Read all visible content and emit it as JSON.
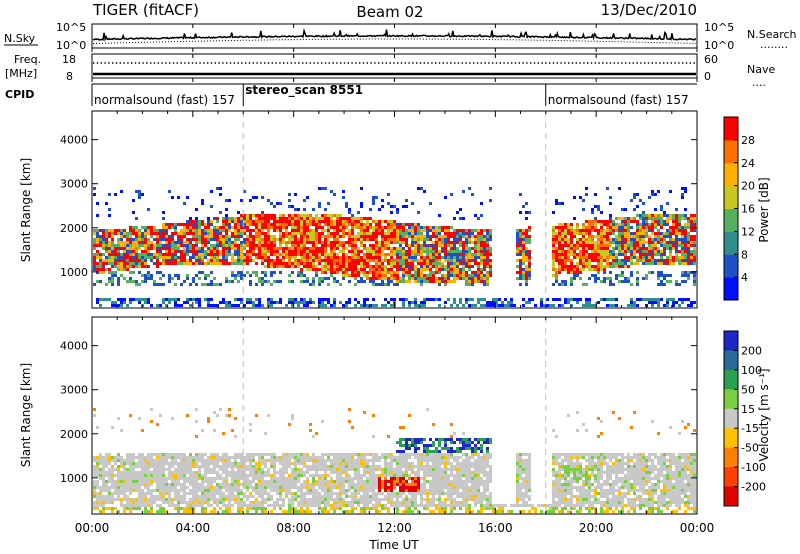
{
  "header": {
    "station": "TIGER (fitACF)",
    "beam": "Beam 02",
    "date": "13/Dec/2010"
  },
  "panels": {
    "nsky": {
      "left_label": "N.Sky",
      "left_top_tick": "10^5",
      "left_bottom_tick": "10^0",
      "right_top_tick": "10^5",
      "right_bottom_tick": "10^0",
      "right_label": "N.Search",
      "right_legend": "........"
    },
    "freq": {
      "left_label_line1": "Freq.",
      "left_label_line2": "[MHz]",
      "left_top_tick": "18",
      "left_bottom_tick": "8",
      "right_top_tick": "60",
      "right_bottom_tick": "0",
      "right_label": "Nave",
      "right_legend": "...."
    },
    "cpid": {
      "label": "CPID",
      "segments": [
        {
          "name": "normalsound (fast) 157",
          "start_hour": 0,
          "end_hour": 6
        },
        {
          "name": "stereo_scan 8551",
          "start_hour": 6,
          "end_hour": 18
        },
        {
          "name": "normalsound (fast) 157",
          "start_hour": 18,
          "end_hour": 24
        }
      ]
    }
  },
  "chart_data": [
    {
      "type": "heatmap",
      "name": "power",
      "ylabel": "Slant Range [km]",
      "yticks": [
        "1000",
        "2000",
        "3000",
        "4000"
      ],
      "ylim": [
        180,
        4650
      ],
      "colorbar": {
        "label": "Power [dB]",
        "ticks": [
          "4",
          "8",
          "12",
          "16",
          "20",
          "24",
          "28"
        ],
        "colors": [
          "#0010ff",
          "#1e50c8",
          "#2f8f8f",
          "#55b060",
          "#c8c820",
          "#ffb000",
          "#ff7000",
          "#ff0000"
        ]
      }
    },
    {
      "type": "heatmap",
      "name": "velocity",
      "ylabel": "Slant Range [km]",
      "yticks": [
        "1000",
        "2000",
        "3000",
        "4000"
      ],
      "ylim": [
        180,
        4650
      ],
      "colorbar": {
        "label": "Velocity [m s⁻¹]",
        "ticks": [
          "200",
          "100",
          "50",
          "15",
          "-15",
          "-50",
          "-100",
          "-200"
        ],
        "colors": [
          "#1e28c8",
          "#2a6a9a",
          "#2aa050",
          "#78d040",
          "#c8c8c8",
          "#ffc000",
          "#ff8000",
          "#ff4000",
          "#e00000"
        ]
      }
    }
  ],
  "xaxis": {
    "label": "Time UT",
    "ticks": [
      "00:00",
      "04:00",
      "08:00",
      "12:00",
      "16:00",
      "20:00",
      "00:00"
    ]
  }
}
